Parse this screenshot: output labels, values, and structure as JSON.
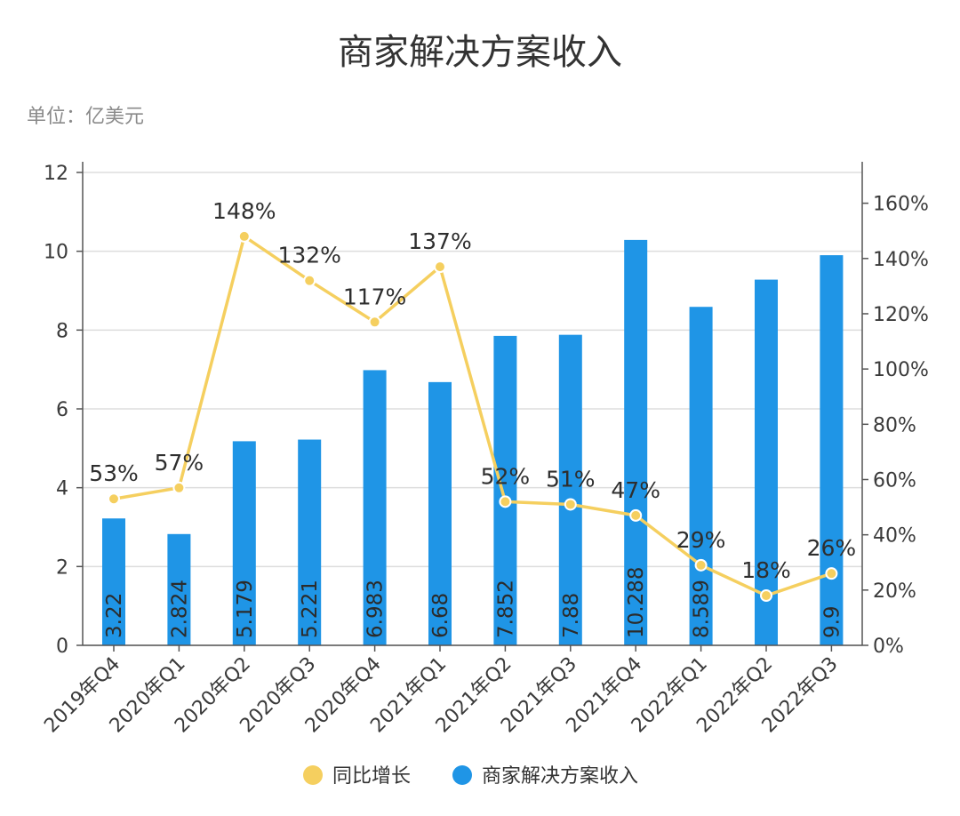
{
  "chart_data": {
    "type": "bar+line",
    "title": "商家解决方案收入",
    "unit_label": "单位：亿美元",
    "categories": [
      "2019年Q4",
      "2020年Q1",
      "2020年Q2",
      "2020年Q3",
      "2020年Q4",
      "2021年Q1",
      "2021年Q2",
      "2021年Q3",
      "2021年Q4",
      "2022年Q1",
      "2022年Q2",
      "2022年Q3"
    ],
    "series": [
      {
        "name": "商家解决方案收入",
        "type": "bar",
        "axis": "left",
        "color": "#1f95e6",
        "values": [
          3.22,
          2.824,
          5.179,
          5.221,
          6.983,
          6.68,
          7.852,
          7.88,
          10.288,
          8.589,
          9.28,
          9.9
        ],
        "labels": [
          "3.22",
          "2.824",
          "5.179",
          "5.221",
          "6.983",
          "6.68",
          "7.852",
          "7.88",
          "10.288",
          "8.589",
          "",
          "9.9"
        ]
      },
      {
        "name": "同比增长",
        "type": "line",
        "axis": "right",
        "color": "#f5cf5f",
        "values": [
          53,
          57,
          148,
          132,
          117,
          137,
          52,
          51,
          47,
          29,
          18,
          26
        ],
        "labels": [
          "53%",
          "57%",
          "148%",
          "132%",
          "117%",
          "137%",
          "52%",
          "51%",
          "47%",
          "29%",
          "18%",
          "26%"
        ]
      }
    ],
    "y_left": {
      "min": 0,
      "max": 12,
      "ticks": [
        "0",
        "2",
        "4",
        "6",
        "8",
        "10",
        "12"
      ]
    },
    "y_right": {
      "min": 0,
      "max": 175,
      "ticks": [
        "0%",
        "20%",
        "40%",
        "60%",
        "80%",
        "100%",
        "120%",
        "140%",
        "160%"
      ]
    },
    "grid": true,
    "legend": {
      "position": "bottom-center",
      "items": [
        {
          "label": "同比增长",
          "color": "#f5cf5f"
        },
        {
          "label": "商家解决方案收入",
          "color": "#1f95e6"
        }
      ]
    }
  }
}
